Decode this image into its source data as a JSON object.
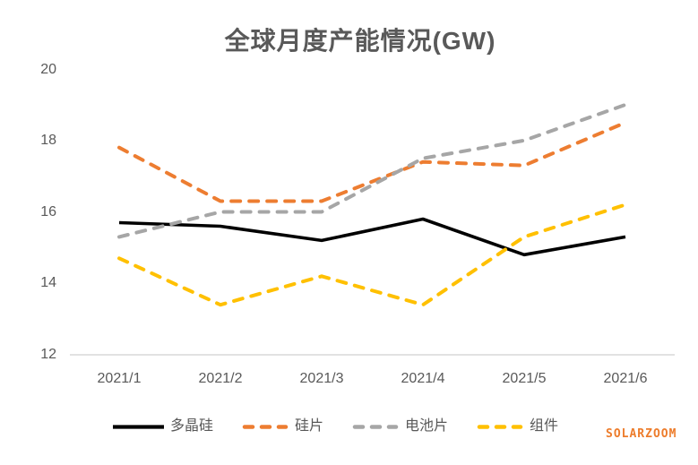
{
  "title": "全球月度产能情况(GW)",
  "watermark": "SOLARZOOM",
  "colors": {
    "polysilicon": "#000000",
    "wafer": "#ED7D31",
    "cell": "#A6A6A6",
    "module": "#FFC000",
    "axis_line": "#D9D9D9",
    "tick_label": "#595959",
    "title": "#595959",
    "watermark": "#ED7C2B"
  },
  "chart_data": {
    "type": "line",
    "title": "全球月度产能情况(GW)",
    "xlabel": "",
    "ylabel": "",
    "categories": [
      "2021/1",
      "2021/2",
      "2021/3",
      "2021/4",
      "2021/5",
      "2021/6"
    ],
    "series": [
      {
        "key": "polysilicon",
        "name": "多晶硅",
        "color": "#000000",
        "dashed": false,
        "values": [
          15.7,
          15.6,
          15.2,
          15.8,
          14.8,
          15.3
        ]
      },
      {
        "key": "wafer",
        "name": "硅片",
        "color": "#ED7D31",
        "dashed": true,
        "values": [
          17.8,
          16.3,
          16.3,
          17.4,
          17.3,
          18.5
        ]
      },
      {
        "key": "cell",
        "name": "电池片",
        "color": "#A6A6A6",
        "dashed": true,
        "values": [
          15.3,
          16.0,
          16.0,
          17.5,
          18.0,
          19.0
        ]
      },
      {
        "key": "module",
        "name": "组件",
        "color": "#FFC000",
        "dashed": true,
        "values": [
          14.7,
          13.4,
          14.2,
          13.4,
          15.3,
          16.2
        ]
      }
    ],
    "yticks": [
      "20",
      "18",
      "16",
      "14",
      "12"
    ],
    "ylim": [
      12,
      20
    ],
    "grid": false,
    "legend_position": "bottom"
  }
}
